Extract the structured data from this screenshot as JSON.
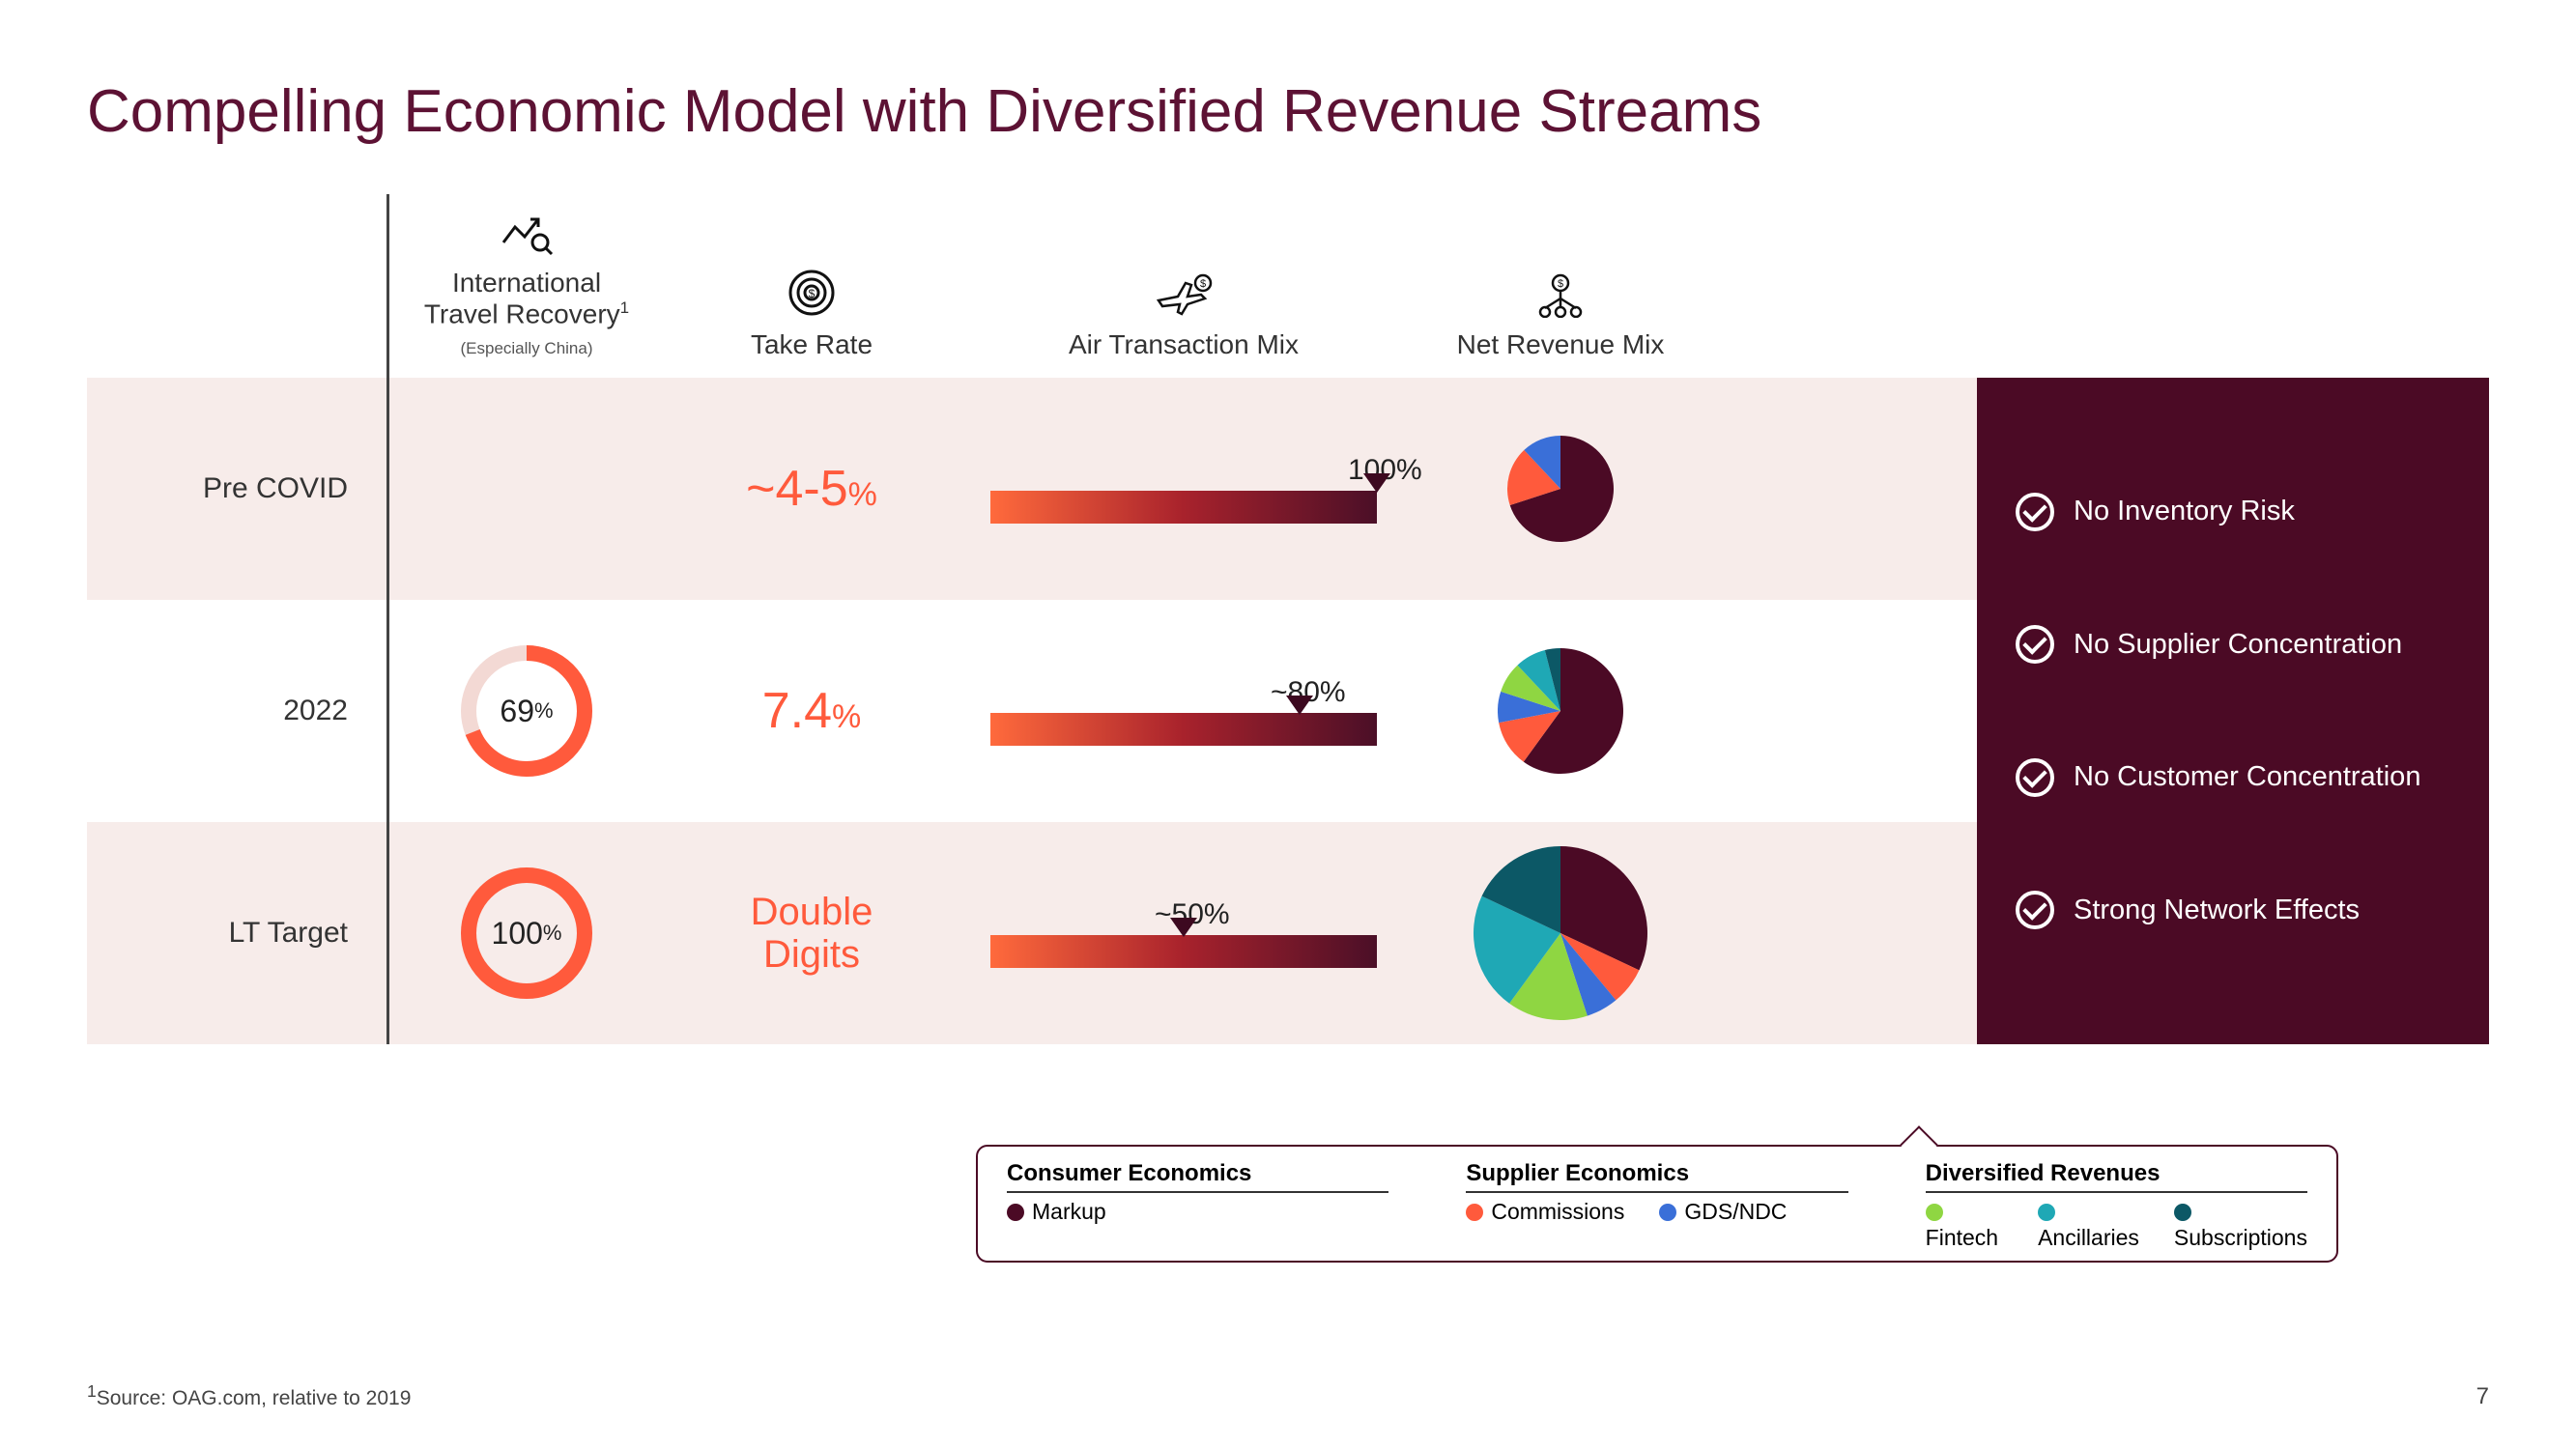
{
  "title": "Compelling Economic Model with Diversified Revenue Streams",
  "colors": {
    "title": "#5d1234",
    "accent": "#ff5a3c",
    "panel_bg": "#4b0a25",
    "row_shade": "#f7ecea",
    "bar_gradient": [
      "#ff6a3c",
      "#a8222c",
      "#4b0f27"
    ],
    "donut_track": "#f3d9d4",
    "donut_fill": "#ff5a3c"
  },
  "columns": {
    "recovery": {
      "label_line1": "International",
      "label_line2": "Travel Recovery",
      "sup": "1",
      "sub": "(Especially China)"
    },
    "take": {
      "label": "Take Rate"
    },
    "air": {
      "label": "Air Transaction Mix"
    },
    "rev": {
      "label": "Net Revenue Mix"
    }
  },
  "rows": [
    {
      "label": "Pre COVID",
      "shaded": true,
      "recovery_pct": null,
      "take_text": "~4-5",
      "take_is_pct": true,
      "air_label": "100%",
      "air_marker_pct": 100,
      "pie_size": 110,
      "pie_slices": [
        {
          "name": "markup",
          "pct": 70,
          "color": "#4b0a25"
        },
        {
          "name": "commissions",
          "pct": 18,
          "color": "#ff5a3c"
        },
        {
          "name": "gds",
          "pct": 12,
          "color": "#3a6fd8"
        }
      ]
    },
    {
      "label": "2022",
      "shaded": false,
      "recovery_pct": 69,
      "take_text": "7.4",
      "take_is_pct": true,
      "air_label": "~80%",
      "air_marker_pct": 80,
      "pie_size": 130,
      "pie_slices": [
        {
          "name": "markup",
          "pct": 60,
          "color": "#4b0a25"
        },
        {
          "name": "commissions",
          "pct": 12,
          "color": "#ff5a3c"
        },
        {
          "name": "gds",
          "pct": 8,
          "color": "#3a6fd8"
        },
        {
          "name": "fintech",
          "pct": 8,
          "color": "#8fd642"
        },
        {
          "name": "ancillaries",
          "pct": 8,
          "color": "#1fa8b5"
        },
        {
          "name": "subscriptions",
          "pct": 4,
          "color": "#0c5866"
        }
      ]
    },
    {
      "label": "LT Target",
      "shaded": true,
      "recovery_pct": 100,
      "take_text": "Double\nDigits",
      "take_is_pct": false,
      "air_label": "~50%",
      "air_marker_pct": 50,
      "pie_size": 180,
      "pie_slices": [
        {
          "name": "markup",
          "pct": 32,
          "color": "#4b0a25"
        },
        {
          "name": "commissions",
          "pct": 7,
          "color": "#ff5a3c"
        },
        {
          "name": "gds",
          "pct": 6,
          "color": "#3a6fd8"
        },
        {
          "name": "fintech",
          "pct": 15,
          "color": "#8fd642"
        },
        {
          "name": "ancillaries",
          "pct": 22,
          "color": "#1fa8b5"
        },
        {
          "name": "subscriptions",
          "pct": 18,
          "color": "#0c5866"
        }
      ]
    }
  ],
  "benefits": [
    "No Inventory Risk",
    "No Supplier Concentration",
    "No Customer Concentration",
    "Strong Network Effects"
  ],
  "legend": {
    "groups": [
      {
        "title": "Consumer Economics",
        "items": [
          {
            "label": "Markup",
            "color": "#4b0a25"
          }
        ]
      },
      {
        "title": "Supplier Economics",
        "items": [
          {
            "label": "Commissions",
            "color": "#ff5a3c"
          },
          {
            "label": "GDS/NDC",
            "color": "#3a6fd8"
          }
        ]
      },
      {
        "title": "Diversified Revenues",
        "items": [
          {
            "label": "Fintech",
            "color": "#8fd642"
          },
          {
            "label": "Ancillaries",
            "color": "#1fa8b5"
          },
          {
            "label": "Subscriptions",
            "color": "#0c5866"
          }
        ]
      }
    ]
  },
  "footnote": {
    "sup": "1",
    "text": "Source: OAG.com, relative to 2019"
  },
  "page_number": "7"
}
